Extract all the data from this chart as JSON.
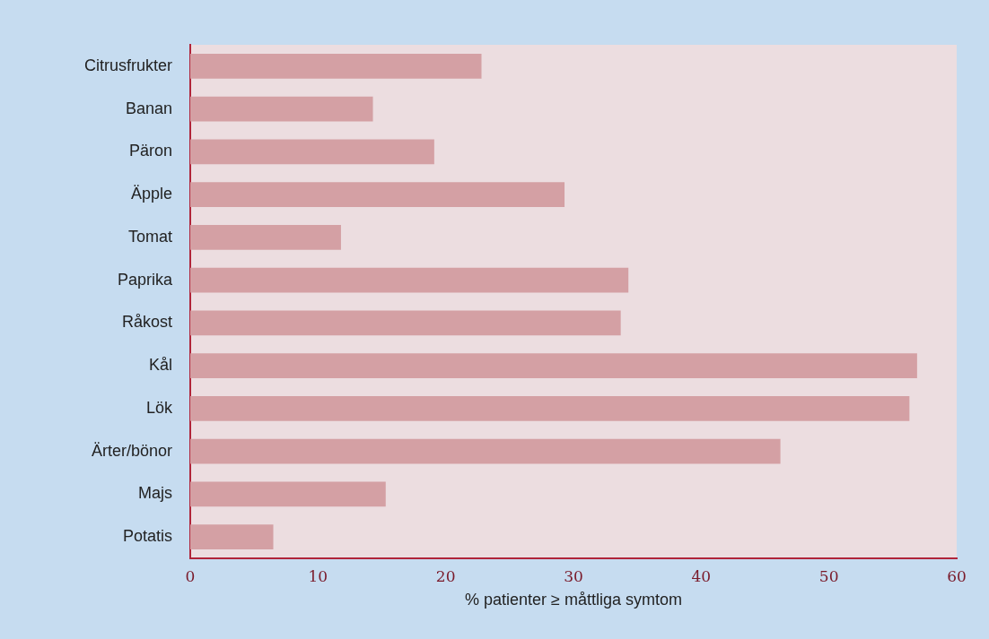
{
  "chart_data": {
    "type": "bar",
    "orientation": "horizontal",
    "xlabel": "% patienter ≥ måttliga symtom",
    "categories": [
      "Citrusfrukter",
      "Banan",
      "Päron",
      "Äpple",
      "Tomat",
      "Paprika",
      "Råkost",
      "Kål",
      "Lök",
      "Ärter/bönor",
      "Majs",
      "Potatis"
    ],
    "values": [
      22.8,
      14.3,
      19.1,
      29.3,
      11.8,
      34.3,
      33.7,
      56.9,
      56.3,
      46.2,
      15.3,
      6.5
    ],
    "color": "#d4a0a4",
    "xlim": [
      0,
      60
    ],
    "xticks": [
      0,
      10,
      20,
      30,
      40,
      50,
      60
    ],
    "grid": false,
    "legend": false
  }
}
